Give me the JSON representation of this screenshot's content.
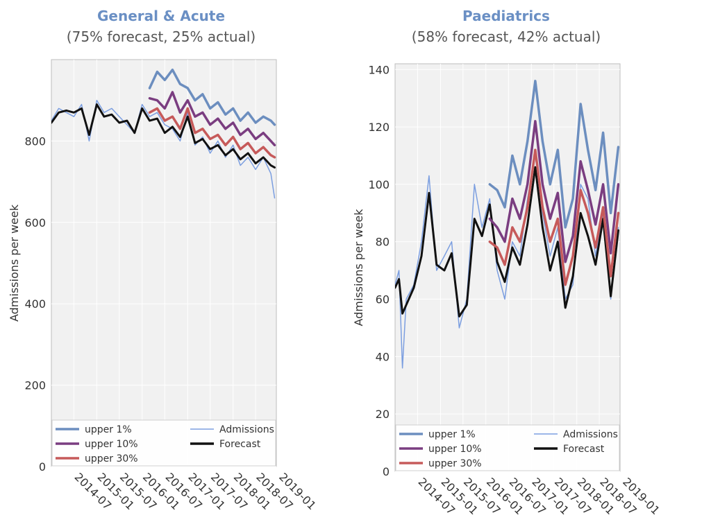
{
  "chart_data": [
    {
      "type": "line",
      "title": "General & Acute",
      "subtitle": "(75% forecast, 25% actual)",
      "ylabel": "Admissions per week",
      "ylim": [
        0,
        1000
      ],
      "yticks": [
        0,
        200,
        400,
        600,
        800
      ],
      "xlim": [
        "2014-01-01",
        "2018-12-15"
      ],
      "xticks": [
        "2014-07",
        "2015-01",
        "2015-07",
        "2016-01",
        "2016-07",
        "2017-01",
        "2017-07",
        "2018-01",
        "2018-07",
        "2019-01"
      ],
      "grid": true,
      "legend_position": "bottom",
      "legend": [
        {
          "name": "upper 1%",
          "color": "#6c8ebf"
        },
        {
          "name": "Admissions",
          "color": "#7b9ee0"
        },
        {
          "name": "upper 10%",
          "color": "#7a3d80"
        },
        {
          "name": "Forecast",
          "color": "#111111"
        },
        {
          "name": "upper 30%",
          "color": "#c65a5a"
        }
      ],
      "series": [
        {
          "name": "Admissions",
          "color": "#7b9ee0",
          "x": [
            "2014-01-01",
            "2014-03-01",
            "2014-05-01",
            "2014-07-01",
            "2014-09-01",
            "2014-11-01",
            "2015-01-01",
            "2015-03-01",
            "2015-05-01",
            "2015-07-01",
            "2015-09-01",
            "2015-11-01",
            "2016-01-01",
            "2016-03-01",
            "2016-05-01",
            "2016-07-01",
            "2016-09-01",
            "2016-11-01",
            "2017-01-01",
            "2017-03-01",
            "2017-05-01",
            "2017-07-01",
            "2017-09-01",
            "2017-11-01",
            "2018-01-01",
            "2018-03-01",
            "2018-05-01",
            "2018-07-01",
            "2018-09-01",
            "2018-11-01",
            "2018-12-01"
          ],
          "values": [
            850,
            880,
            870,
            860,
            890,
            800,
            900,
            870,
            880,
            860,
            840,
            820,
            890,
            860,
            870,
            840,
            830,
            800,
            870,
            790,
            810,
            770,
            800,
            760,
            790,
            740,
            760,
            730,
            760,
            720,
            660
          ]
        },
        {
          "name": "Forecast",
          "color": "#111111",
          "x": [
            "2014-01-01",
            "2014-03-01",
            "2014-05-01",
            "2014-07-01",
            "2014-09-01",
            "2014-11-01",
            "2015-01-01",
            "2015-03-01",
            "2015-05-01",
            "2015-07-01",
            "2015-09-01",
            "2015-11-01",
            "2016-01-01",
            "2016-03-01",
            "2016-05-01",
            "2016-07-01",
            "2016-09-01",
            "2016-11-01",
            "2017-01-01",
            "2017-03-01",
            "2017-05-01",
            "2017-07-01",
            "2017-09-01",
            "2017-11-01",
            "2018-01-01",
            "2018-03-01",
            "2018-05-01",
            "2018-07-01",
            "2018-09-01",
            "2018-11-01",
            "2018-12-01"
          ],
          "values": [
            845,
            870,
            875,
            870,
            880,
            815,
            890,
            860,
            865,
            845,
            850,
            820,
            880,
            850,
            855,
            820,
            835,
            810,
            860,
            795,
            805,
            780,
            790,
            765,
            780,
            755,
            770,
            745,
            760,
            740,
            735
          ]
        },
        {
          "name": "upper 30%",
          "color": "#c65a5a",
          "x": [
            "2016-03-01",
            "2016-05-01",
            "2016-07-01",
            "2016-09-01",
            "2016-11-01",
            "2017-01-01",
            "2017-03-01",
            "2017-05-01",
            "2017-07-01",
            "2017-09-01",
            "2017-11-01",
            "2018-01-01",
            "2018-03-01",
            "2018-05-01",
            "2018-07-01",
            "2018-09-01",
            "2018-11-01",
            "2018-12-01"
          ],
          "values": [
            870,
            880,
            850,
            860,
            830,
            880,
            820,
            830,
            805,
            815,
            790,
            810,
            780,
            795,
            770,
            785,
            765,
            760
          ]
        },
        {
          "name": "upper 10%",
          "color": "#7a3d80",
          "x": [
            "2016-03-01",
            "2016-05-01",
            "2016-07-01",
            "2016-09-01",
            "2016-11-01",
            "2017-01-01",
            "2017-03-01",
            "2017-05-01",
            "2017-07-01",
            "2017-09-01",
            "2017-11-01",
            "2018-01-01",
            "2018-03-01",
            "2018-05-01",
            "2018-07-01",
            "2018-09-01",
            "2018-11-01",
            "2018-12-01"
          ],
          "values": [
            905,
            900,
            880,
            920,
            870,
            900,
            860,
            870,
            840,
            855,
            830,
            845,
            815,
            830,
            805,
            820,
            800,
            790
          ]
        },
        {
          "name": "upper 1%",
          "color": "#6c8ebf",
          "x": [
            "2016-03-01",
            "2016-05-01",
            "2016-07-01",
            "2016-09-01",
            "2016-11-01",
            "2017-01-01",
            "2017-03-01",
            "2017-05-01",
            "2017-07-01",
            "2017-09-01",
            "2017-11-01",
            "2018-01-01",
            "2018-03-01",
            "2018-05-01",
            "2018-07-01",
            "2018-09-01",
            "2018-11-01",
            "2018-12-01"
          ],
          "values": [
            930,
            970,
            950,
            975,
            940,
            930,
            900,
            915,
            880,
            895,
            865,
            880,
            850,
            870,
            845,
            860,
            850,
            840
          ]
        }
      ]
    },
    {
      "type": "line",
      "title": "Paediatrics",
      "subtitle": "(58% forecast, 42% actual)",
      "ylabel": "Admissions per week",
      "ylim": [
        0,
        142
      ],
      "yticks": [
        0,
        20,
        40,
        60,
        80,
        100,
        120,
        140
      ],
      "xlim": [
        "2014-01-01",
        "2018-12-15"
      ],
      "xticks": [
        "2014-07",
        "2015-01",
        "2015-07",
        "2016-01",
        "2016-07",
        "2017-01",
        "2017-07",
        "2018-01",
        "2018-07",
        "2019-01"
      ],
      "grid": true,
      "legend_position": "bottom",
      "legend": [
        {
          "name": "upper 1%",
          "color": "#6c8ebf"
        },
        {
          "name": "Admissions",
          "color": "#7b9ee0"
        },
        {
          "name": "upper 10%",
          "color": "#7a3d80"
        },
        {
          "name": "Forecast",
          "color": "#111111"
        },
        {
          "name": "upper 30%",
          "color": "#c65a5a"
        }
      ],
      "series": [
        {
          "name": "Admissions",
          "color": "#7b9ee0",
          "x": [
            "2014-01-01",
            "2014-02-01",
            "2014-03-01",
            "2014-04-01",
            "2014-06-01",
            "2014-08-01",
            "2014-10-01",
            "2014-12-01",
            "2015-02-01",
            "2015-04-01",
            "2015-06-01",
            "2015-08-01",
            "2015-10-01",
            "2015-12-01",
            "2016-02-01",
            "2016-04-01",
            "2016-06-01",
            "2016-08-01",
            "2016-10-01",
            "2016-12-01",
            "2017-02-01",
            "2017-04-01",
            "2017-06-01",
            "2017-08-01",
            "2017-10-01",
            "2017-12-01",
            "2018-02-01",
            "2018-04-01",
            "2018-06-01",
            "2018-08-01",
            "2018-10-01",
            "2018-12-01"
          ],
          "values": [
            65,
            70,
            36,
            60,
            65,
            80,
            103,
            70,
            75,
            80,
            50,
            60,
            100,
            85,
            95,
            70,
            60,
            80,
            75,
            95,
            110,
            90,
            75,
            85,
            60,
            65,
            100,
            95,
            75,
            90,
            60,
            85
          ]
        },
        {
          "name": "Forecast",
          "color": "#111111",
          "x": [
            "2014-01-01",
            "2014-02-01",
            "2014-03-01",
            "2014-04-01",
            "2014-06-01",
            "2014-08-01",
            "2014-10-01",
            "2014-12-01",
            "2015-02-01",
            "2015-04-01",
            "2015-06-01",
            "2015-08-01",
            "2015-10-01",
            "2015-12-01",
            "2016-02-01",
            "2016-04-01",
            "2016-06-01",
            "2016-08-01",
            "2016-10-01",
            "2016-12-01",
            "2017-02-01",
            "2017-04-01",
            "2017-06-01",
            "2017-08-01",
            "2017-10-01",
            "2017-12-01",
            "2018-02-01",
            "2018-04-01",
            "2018-06-01",
            "2018-08-01",
            "2018-10-01",
            "2018-12-01"
          ],
          "values": [
            64,
            67,
            55,
            58,
            64,
            75,
            97,
            72,
            70,
            76,
            54,
            58,
            88,
            82,
            93,
            73,
            66,
            78,
            72,
            86,
            106,
            85,
            70,
            80,
            57,
            68,
            90,
            82,
            72,
            88,
            61,
            84
          ]
        },
        {
          "name": "upper 30%",
          "color": "#c65a5a",
          "x": [
            "2016-02-01",
            "2016-04-01",
            "2016-06-01",
            "2016-08-01",
            "2016-10-01",
            "2016-12-01",
            "2017-02-01",
            "2017-04-01",
            "2017-06-01",
            "2017-08-01",
            "2017-10-01",
            "2017-12-01",
            "2018-02-01",
            "2018-04-01",
            "2018-06-01",
            "2018-08-01",
            "2018-10-01",
            "2018-12-01"
          ],
          "values": [
            80,
            78,
            72,
            85,
            80,
            92,
            112,
            92,
            80,
            88,
            65,
            75,
            98,
            90,
            78,
            92,
            68,
            90
          ]
        },
        {
          "name": "upper 10%",
          "color": "#7a3d80",
          "x": [
            "2016-02-01",
            "2016-04-01",
            "2016-06-01",
            "2016-08-01",
            "2016-10-01",
            "2016-12-01",
            "2017-02-01",
            "2017-04-01",
            "2017-06-01",
            "2017-08-01",
            "2017-10-01",
            "2017-12-01",
            "2018-02-01",
            "2018-04-01",
            "2018-06-01",
            "2018-08-01",
            "2018-10-01",
            "2018-12-01"
          ],
          "values": [
            88,
            85,
            80,
            95,
            88,
            100,
            122,
            100,
            88,
            97,
            73,
            82,
            108,
            98,
            86,
            100,
            76,
            100
          ]
        },
        {
          "name": "upper 1%",
          "color": "#6c8ebf",
          "x": [
            "2016-02-01",
            "2016-04-01",
            "2016-06-01",
            "2016-08-01",
            "2016-10-01",
            "2016-12-01",
            "2017-02-01",
            "2017-04-01",
            "2017-06-01",
            "2017-08-01",
            "2017-10-01",
            "2017-12-01",
            "2018-02-01",
            "2018-04-01",
            "2018-06-01",
            "2018-08-01",
            "2018-10-01",
            "2018-12-01"
          ],
          "values": [
            100,
            98,
            92,
            110,
            100,
            115,
            136,
            115,
            100,
            112,
            85,
            95,
            128,
            112,
            98,
            118,
            90,
            113
          ]
        }
      ]
    }
  ]
}
